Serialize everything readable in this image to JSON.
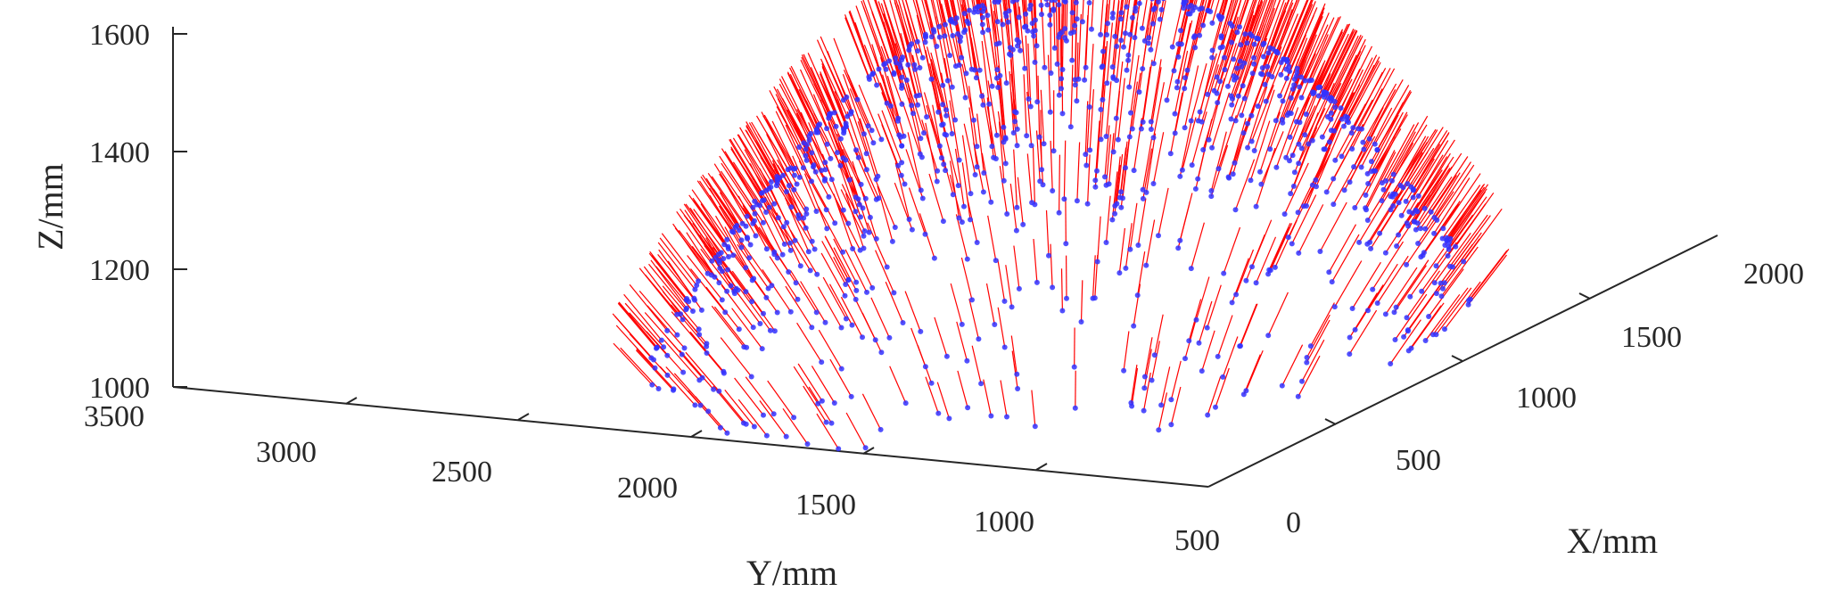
{
  "chart_data": {
    "type": "scatter",
    "chart_kind": "3d-scatter-with-normal-vectors",
    "title": "",
    "xlabel": "X/mm",
    "ylabel": "Y/mm",
    "zlabel": "Z/mm",
    "xlim": [
      0,
      2000
    ],
    "ylim": [
      500,
      3500
    ],
    "zlim": [
      1000,
      1600
    ],
    "x_ticks": [
      "0",
      "500",
      "1000",
      "1500",
      "2000"
    ],
    "y_ticks": [
      "3500",
      "3000",
      "2500",
      "2000",
      "1500",
      "1000",
      "500"
    ],
    "z_ticks": [
      "1000",
      "1200",
      "1400",
      "1600"
    ],
    "grid": false,
    "legend": "none",
    "surface": {
      "description_values": "sampled points on a dome-shaped surface; Z rises from about 1000 at the rim to about 1560 at the top",
      "z_min": 1000,
      "z_max": 1560,
      "x_range": [
        0,
        1900
      ],
      "y_range": [
        650,
        2600
      ]
    },
    "series": [
      {
        "marker": "point",
        "color": "#3333ff",
        "count": 1200
      },
      {
        "marker": "normal-vector",
        "color": "#ff0000",
        "vector_length": 120
      }
    ]
  }
}
